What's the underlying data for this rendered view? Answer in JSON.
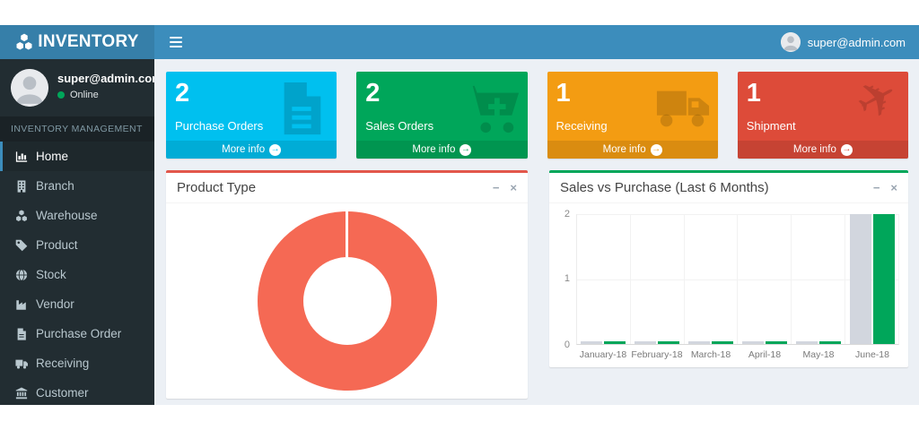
{
  "theme": {
    "navbar_blue": "#3c8dbc",
    "logo_blue": "#367fa9",
    "sidebar_dark": "#222d32",
    "content_bg": "#ecf0f5",
    "online_green": "#00a65a"
  },
  "header": {
    "logo_text": "INVENTORY",
    "user_email": "super@admin.com"
  },
  "sidebar": {
    "user": {
      "email": "super@admin.com",
      "status": "Online"
    },
    "section_label": "INVENTORY MANAGEMENT",
    "items": [
      {
        "label": "Home",
        "icon": "bar-chart-icon",
        "active": true
      },
      {
        "label": "Branch",
        "icon": "building-icon",
        "active": false
      },
      {
        "label": "Warehouse",
        "icon": "cubes-icon",
        "active": false
      },
      {
        "label": "Product",
        "icon": "tag-icon",
        "active": false
      },
      {
        "label": "Stock",
        "icon": "globe-icon",
        "active": false
      },
      {
        "label": "Vendor",
        "icon": "industry-icon",
        "active": false
      },
      {
        "label": "Purchase Order",
        "icon": "file-icon",
        "active": false
      },
      {
        "label": "Receiving",
        "icon": "truck-icon",
        "active": false
      },
      {
        "label": "Customer",
        "icon": "bank-icon",
        "active": false
      }
    ]
  },
  "info_boxes": [
    {
      "value": "2",
      "label": "Purchase Orders",
      "more_label": "More info",
      "color": "#00c0ef",
      "icon": "file-text-icon"
    },
    {
      "value": "2",
      "label": "Sales Orders",
      "more_label": "More info",
      "color": "#00a65a",
      "icon": "cart-plus-icon"
    },
    {
      "value": "1",
      "label": "Receiving",
      "more_label": "More info",
      "color": "#f39c12",
      "icon": "truck-icon"
    },
    {
      "value": "1",
      "label": "Shipment",
      "more_label": "More info",
      "color": "#dd4b39",
      "icon": "plane-icon"
    }
  ],
  "panels": {
    "product_type": {
      "title": "Product Type",
      "accent_color": "#e2574b",
      "tools": {
        "collapse": "−",
        "close": "×"
      }
    },
    "sales_purchase": {
      "title": "Sales vs Purchase (Last 6 Months)",
      "accent_color": "#00a65a",
      "tools": {
        "collapse": "−",
        "close": "×"
      }
    }
  },
  "chart_data": [
    {
      "type": "pie",
      "variant": "donut",
      "title": "Product Type",
      "slices": [
        {
          "label": "",
          "value": 100,
          "color": "#f56954"
        }
      ],
      "legend": "none"
    },
    {
      "type": "bar",
      "title": "Sales vs Purchase (Last 6 Months)",
      "categories": [
        "January-18",
        "February-18",
        "March-18",
        "April-18",
        "May-18",
        "June-18"
      ],
      "series": [
        {
          "name": "",
          "color": "#d2d6de",
          "values": [
            0,
            0,
            0,
            0,
            0,
            2
          ]
        },
        {
          "name": "",
          "color": "#00a65a",
          "values": [
            0,
            0,
            0,
            0,
            0,
            2
          ]
        }
      ],
      "ylim": [
        0,
        2
      ],
      "yticks": [
        0,
        1,
        2
      ],
      "grid": true,
      "legend": "none"
    }
  ]
}
